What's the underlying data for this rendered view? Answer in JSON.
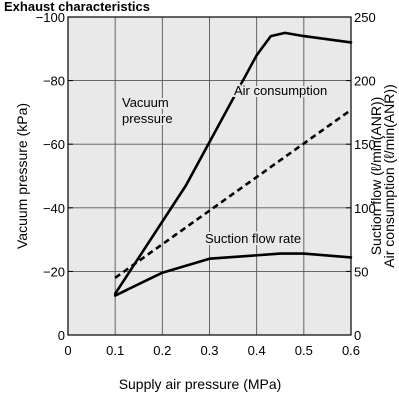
{
  "chart_data": {
    "type": "line",
    "title": "Exhaust characteristics",
    "xlabel": "Supply air pressure (MPa)",
    "ylabel_left": "Vacuum pressure (kPa)",
    "ylabel_right_1": "Suction flow (ℓ/min(ANR))",
    "ylabel_right_2": "Air consumption (ℓ/min(ANR))",
    "xlim": [
      0,
      0.6
    ],
    "ylim_left": [
      0,
      -100
    ],
    "ylim_right": [
      0,
      250
    ],
    "x_ticks": [
      "0",
      "0.1",
      "0.2",
      "0.3",
      "0.4",
      "0.5",
      "0.6"
    ],
    "y_left_ticks": [
      "0",
      "-20",
      "-40",
      "-60",
      "-80",
      "-100"
    ],
    "y_left_ticks_display": [
      "0",
      "−20",
      "−40",
      "−60",
      "−80",
      "−100"
    ],
    "y_right_ticks": [
      "0",
      "50",
      "100",
      "150",
      "200",
      "250"
    ],
    "grid": true,
    "series": [
      {
        "name": "Vacuum pressure",
        "axis": "left",
        "style": "solid",
        "points": [
          [
            0.1,
            -13
          ],
          [
            0.25,
            -47
          ],
          [
            0.4,
            -88
          ],
          [
            0.43,
            -94
          ],
          [
            0.46,
            -95
          ],
          [
            0.5,
            -94
          ],
          [
            0.6,
            -92
          ]
        ]
      },
      {
        "name": "Air consumption",
        "axis": "right",
        "style": "dashed",
        "points": [
          [
            0.1,
            45
          ],
          [
            0.6,
            177
          ]
        ]
      },
      {
        "name": "Suction flow rate",
        "axis": "right",
        "style": "solid",
        "points": [
          [
            0.1,
            31
          ],
          [
            0.2,
            49
          ],
          [
            0.3,
            60
          ],
          [
            0.45,
            64
          ],
          [
            0.5,
            64
          ],
          [
            0.6,
            61
          ]
        ]
      }
    ],
    "annotations": [
      {
        "lines": [
          "Vacuum",
          "pressure"
        ],
        "series": "Vacuum pressure"
      },
      {
        "lines": [
          "Air consumption"
        ],
        "series": "Air consumption"
      },
      {
        "lines": [
          "Suction flow rate"
        ],
        "series": "Suction flow rate"
      }
    ]
  }
}
